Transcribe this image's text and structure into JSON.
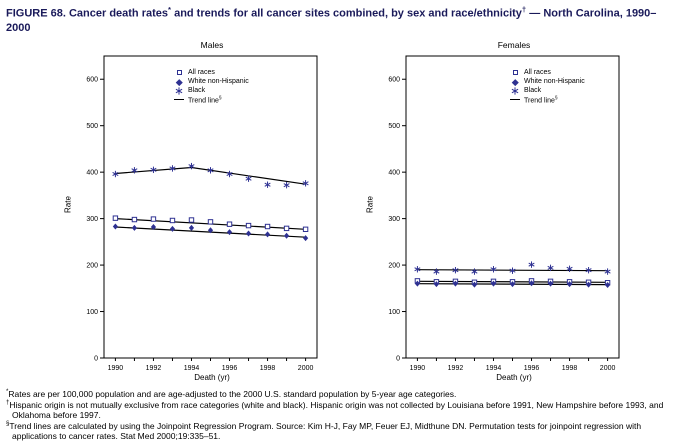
{
  "figure": {
    "title_parts": {
      "p1": "FIGURE 68. Cancer death rates",
      "sup1": "*",
      "p2": " and trends for all cancer sites combined, by sex and race/ethnicity",
      "sup2": "†",
      "p3": " — North Carolina, 1990–2000"
    }
  },
  "colors": {
    "series_marker": "#2e3192",
    "trend_line": "#000000",
    "title_text": "#1a1a5a"
  },
  "chart_data": [
    {
      "type": "line",
      "title": "Males",
      "xlabel": "Death (yr)",
      "ylabel": "Rate",
      "x": [
        1990,
        1991,
        1992,
        1993,
        1994,
        1995,
        1996,
        1997,
        1998,
        1999,
        2000
      ],
      "xlim": [
        1989.4,
        2000.6
      ],
      "ylim": [
        0,
        650
      ],
      "yticks": [
        0,
        100,
        200,
        300,
        400,
        500,
        600
      ],
      "xtick_labels": [
        1990,
        1992,
        1994,
        1996,
        1998,
        2000
      ],
      "series": [
        {
          "name": "All races",
          "marker": "square",
          "values": [
            301,
            298,
            299,
            296,
            297,
            293,
            288,
            285,
            283,
            279,
            277
          ]
        },
        {
          "name": "White non-Hispanic",
          "marker": "diamond",
          "values": [
            283,
            280,
            282,
            278,
            280,
            275,
            271,
            268,
            266,
            263,
            258
          ]
        },
        {
          "name": "Black",
          "marker": "asterisk",
          "values": [
            396,
            404,
            405,
            408,
            413,
            404,
            396,
            386,
            373,
            372,
            376
          ]
        }
      ],
      "trend_lines": [
        {
          "x": [
            1990,
            2000
          ],
          "y": [
            300,
            277
          ]
        },
        {
          "x": [
            1990,
            2000
          ],
          "y": [
            282,
            260
          ]
        },
        {
          "x": [
            1990,
            1994,
            2000
          ],
          "y": [
            397,
            410,
            374
          ]
        }
      ],
      "legend": {
        "entries": [
          "All races",
          "White non-Hispanic",
          "Black"
        ],
        "trend_label": "Trend line",
        "trend_sup": "§"
      },
      "grid": false,
      "legend_position": "upper-center-inside"
    },
    {
      "type": "line",
      "title": "Females",
      "xlabel": "Death (yr)",
      "ylabel": "Rate",
      "x": [
        1990,
        1991,
        1992,
        1993,
        1994,
        1995,
        1996,
        1997,
        1998,
        1999,
        2000
      ],
      "xlim": [
        1989.4,
        2000.6
      ],
      "ylim": [
        0,
        650
      ],
      "yticks": [
        0,
        100,
        200,
        300,
        400,
        500,
        600
      ],
      "xtick_labels": [
        1990,
        1992,
        1994,
        1996,
        1998,
        2000
      ],
      "series": [
        {
          "name": "All races",
          "marker": "square",
          "values": [
            166,
            164,
            165,
            163,
            165,
            164,
            166,
            165,
            164,
            163,
            162
          ]
        },
        {
          "name": "White non-Hispanic",
          "marker": "diamond",
          "values": [
            160,
            159,
            160,
            158,
            160,
            159,
            161,
            160,
            159,
            158,
            157
          ]
        },
        {
          "name": "Black",
          "marker": "asterisk",
          "values": [
            191,
            186,
            189,
            186,
            191,
            188,
            201,
            194,
            192,
            189,
            186
          ]
        }
      ],
      "trend_lines": [
        {
          "x": [
            1990,
            2000
          ],
          "y": [
            165,
            163
          ]
        },
        {
          "x": [
            1990,
            2000
          ],
          "y": [
            160,
            158
          ]
        },
        {
          "x": [
            1990,
            2000
          ],
          "y": [
            190,
            188
          ]
        }
      ],
      "legend": {
        "entries": [
          "All races",
          "White non-Hispanic",
          "Black"
        ],
        "trend_label": "Trend line",
        "trend_sup": "§"
      },
      "grid": false,
      "legend_position": "upper-center-inside"
    }
  ],
  "footnotes": [
    {
      "marker": "*",
      "text": "Rates are per 100,000 population and are age-adjusted to the 2000 U.S. standard population by 5-year age categories."
    },
    {
      "marker": "†",
      "text": "Hispanic origin is not mutually exclusive from race categories (white and black). Hispanic origin was not collected by Louisiana before 1991, New Hampshire before 1993, and Oklahoma before 1997."
    },
    {
      "marker": "§",
      "text": "Trend lines are calculated by using the Joinpoint Regression Program. Source: Kim H-J, Fay MP, Feuer EJ, Midthune DN. Permutation tests for joinpoint regression with applications to cancer rates. Stat Med 2000;19:335–51."
    }
  ]
}
